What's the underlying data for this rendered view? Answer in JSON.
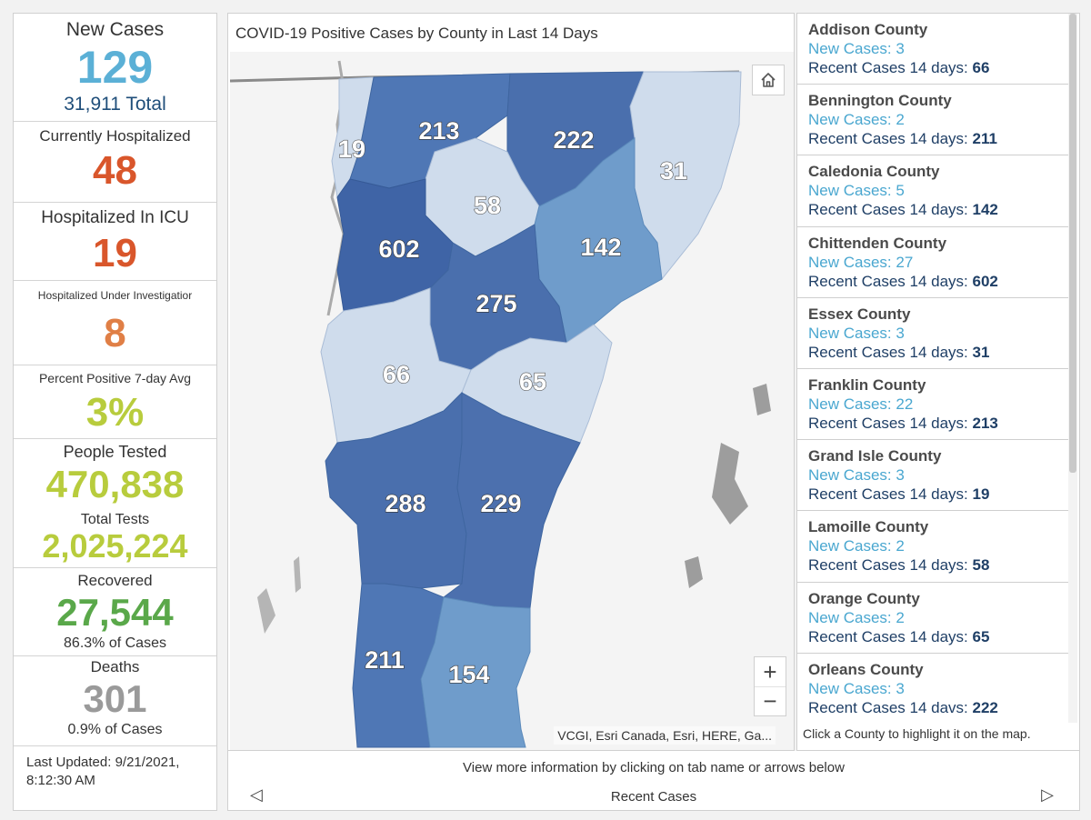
{
  "stats": {
    "new_cases": {
      "label": "New Cases",
      "value": "129",
      "sub": "31,911 Total"
    },
    "hospitalized": {
      "label": "Currently Hospitalized",
      "value": "48"
    },
    "icu": {
      "label": "Hospitalized In ICU",
      "value": "19"
    },
    "under_investigation": {
      "label": "Hospitalized Under Investigatior",
      "value": "8"
    },
    "percent_positive": {
      "label": "Percent Positive 7-day Avg",
      "value": "3%"
    },
    "people_tested": {
      "label": "People Tested",
      "value": "470,838"
    },
    "total_tests": {
      "label": "Total Tests",
      "value": "2,025,224"
    },
    "recovered": {
      "label": "Recovered",
      "value": "27,544",
      "sub": "86.3% of Cases"
    },
    "deaths": {
      "label": "Deaths",
      "value": "301",
      "sub": "0.9% of Cases"
    },
    "updated_line1": "Last Updated: 9/21/2021,",
    "updated_line2": "8:12:30 AM"
  },
  "colors": {
    "new_cases": "#5bb0d6",
    "hospital": "#d9562b",
    "investigation": "#e07f46",
    "tested": "#b8cc3d",
    "recovered": "#5aa84a",
    "deaths": "#9a9a9a",
    "county_dark": "#4a6fad",
    "county_mid": "#6f9ccb",
    "county_light": "#cfdcec"
  },
  "map": {
    "title": "COVID-19 Positive Cases by County in Last 14 Days",
    "attribution": "VCGI, Esri Canada, Esri, HERE, Ga...",
    "home_icon": "home-icon",
    "zoom_in": "+",
    "zoom_out": "−",
    "labels": {
      "grand_isle": "19",
      "franklin": "213",
      "orleans": "222",
      "essex": "31",
      "lamoille": "58",
      "chittenden": "602",
      "caledonia": "142",
      "washington": "275",
      "addison": "66",
      "orange": "65",
      "rutland": "288",
      "windsor": "229",
      "bennington": "211",
      "windham": "154"
    }
  },
  "counties": [
    {
      "name": "Addison County",
      "new_label": "New Cases:",
      "new_value": "3",
      "recent_label": "Recent Cases 14 days:",
      "recent_value": "66"
    },
    {
      "name": "Bennington County",
      "new_label": "New Cases:",
      "new_value": "2",
      "recent_label": "Recent Cases 14 days:",
      "recent_value": "211"
    },
    {
      "name": "Caledonia County",
      "new_label": "New Cases:",
      "new_value": "5",
      "recent_label": "Recent Cases 14 days:",
      "recent_value": "142"
    },
    {
      "name": "Chittenden County",
      "new_label": "New Cases:",
      "new_value": "27",
      "recent_label": "Recent Cases 14 days:",
      "recent_value": "602"
    },
    {
      "name": "Essex County",
      "new_label": "New Cases:",
      "new_value": "3",
      "recent_label": "Recent Cases 14 days:",
      "recent_value": "31"
    },
    {
      "name": "Franklin County",
      "new_label": "New Cases:",
      "new_value": "22",
      "recent_label": "Recent Cases 14 days:",
      "recent_value": "213"
    },
    {
      "name": "Grand Isle County",
      "new_label": "New Cases:",
      "new_value": "3",
      "recent_label": "Recent Cases 14 days:",
      "recent_value": "19"
    },
    {
      "name": "Lamoille County",
      "new_label": "New Cases:",
      "new_value": "2",
      "recent_label": "Recent Cases 14 days:",
      "recent_value": "58"
    },
    {
      "name": "Orange County",
      "new_label": "New Cases:",
      "new_value": "2",
      "recent_label": "Recent Cases 14 days:",
      "recent_value": "65"
    },
    {
      "name": "Orleans County",
      "new_label": "New Cases:",
      "new_value": "3",
      "recent_label": "Recent Cases 14 davs:",
      "recent_value": "222"
    }
  ],
  "list_hint": "Click a County to highlight it on the map.",
  "nav": {
    "hint": "View more information by clicking on tab name or arrows below",
    "tab_label": "Recent Cases",
    "prev": "◁",
    "next": "▷"
  }
}
